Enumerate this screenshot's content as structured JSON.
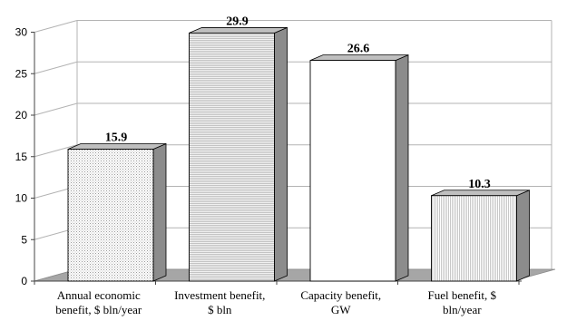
{
  "chart_data": {
    "type": "bar",
    "title": "",
    "xlabel": "",
    "ylabel": "",
    "ylim": [
      0,
      30
    ],
    "yticks": [
      0,
      5,
      10,
      15,
      20,
      25,
      30
    ],
    "grid": true,
    "legend": "none",
    "style": "3d-column",
    "categories": [
      [
        "Annual economic",
        "benefit, $ bln/year"
      ],
      [
        "Investment benefit,",
        "$ bln"
      ],
      [
        "Capacity benefit,",
        "GW"
      ],
      [
        "Fuel benefit, $",
        "bln/year"
      ]
    ],
    "values": [
      15.9,
      29.9,
      26.6,
      10.3
    ],
    "value_labels": [
      "15.9",
      "29.9",
      "26.6",
      "10.3"
    ],
    "fills": [
      "dotted",
      "horizontal-lines",
      "white",
      "vertical-lines"
    ],
    "colors": {
      "gridline": "#b3b3b3",
      "floor": "#a6a6a6",
      "bar_outline": "#000000",
      "bar_side": "#8c8c8c",
      "bar_top": "#bfbfbf"
    }
  }
}
